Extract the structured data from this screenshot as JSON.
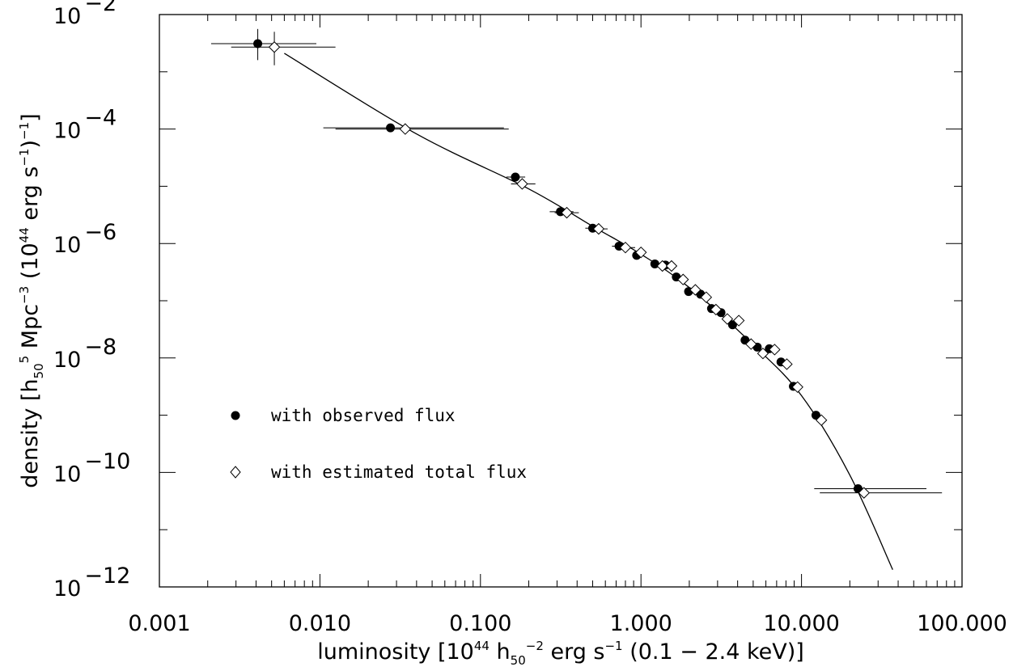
{
  "chart_data": {
    "type": "scatter",
    "title": "",
    "xlabel": "luminosity [10^44 h_50^-2 erg s^-1 (0.1 - 2.4 keV)]",
    "ylabel": "density [h_50^5 Mpc^-3 (10^44 erg s^-1)^-1]",
    "xscale": "log",
    "yscale": "log",
    "xlim": [
      0.001,
      100.0
    ],
    "ylim": [
      1e-12,
      0.01
    ],
    "x_tick_labels": [
      "0.001",
      "0.010",
      "0.100",
      "1.000",
      "10.000",
      "100.000"
    ],
    "y_tick_exponents": [
      "-12",
      "-10",
      "-8",
      "-6",
      "-4",
      "-2"
    ],
    "grid": false,
    "legend_position": "lower-left",
    "series": [
      {
        "name": "with observed flux",
        "marker": "filled-circle",
        "points": [
          {
            "x": 0.0041,
            "y": 0.0031,
            "xerr": [
              0.0021,
              0.0095
            ],
            "yerr": [
              0.0016,
              0.0056
            ]
          },
          {
            "x": 0.0275,
            "y": 0.000105,
            "xerr": [
              0.0105,
              0.14
            ]
          },
          {
            "x": 0.165,
            "y": 1.45e-05,
            "xerr": [
              0.145,
              0.19
            ]
          },
          {
            "x": 0.315,
            "y": 3.6e-06,
            "xerr": [
              0.27,
              0.38
            ]
          },
          {
            "x": 0.5,
            "y": 1.85e-06,
            "xerr": [
              0.45,
              0.56
            ]
          },
          {
            "x": 0.73,
            "y": 9e-07,
            "xerr": [
              0.66,
              0.82
            ]
          },
          {
            "x": 0.94,
            "y": 6.2e-07
          },
          {
            "x": 1.22,
            "y": 4.4e-07
          },
          {
            "x": 1.42,
            "y": 4.2e-07
          },
          {
            "x": 1.66,
            "y": 2.6e-07
          },
          {
            "x": 1.98,
            "y": 1.45e-07
          },
          {
            "x": 2.35,
            "y": 1.3e-07
          },
          {
            "x": 2.75,
            "y": 7.3e-08
          },
          {
            "x": 3.15,
            "y": 6.2e-08
          },
          {
            "x": 3.72,
            "y": 3.8e-08
          },
          {
            "x": 4.45,
            "y": 2.05e-08
          },
          {
            "x": 5.3,
            "y": 1.55e-08
          },
          {
            "x": 6.3,
            "y": 1.45e-08
          },
          {
            "x": 7.45,
            "y": 8.5e-09
          },
          {
            "x": 8.9,
            "y": 3.2e-09
          },
          {
            "x": 12.3,
            "y": 1e-09
          },
          {
            "x": 22.5,
            "y": 5.2e-11,
            "xerr": [
              12.0,
              60.0
            ]
          }
        ]
      },
      {
        "name": "with estimated total flux",
        "marker": "open-diamond",
        "points": [
          {
            "x": 0.0052,
            "y": 0.0027,
            "xerr": [
              0.0028,
              0.0125
            ],
            "yerr": [
              0.0013,
              0.005
            ]
          },
          {
            "x": 0.034,
            "y": 0.0001,
            "xerr": [
              0.0125,
              0.15
            ]
          },
          {
            "x": 0.182,
            "y": 1.1e-05,
            "xerr": [
              0.155,
              0.22
            ]
          },
          {
            "x": 0.345,
            "y": 3.45e-06,
            "xerr": [
              0.29,
              0.41
            ]
          },
          {
            "x": 0.545,
            "y": 1.8e-06,
            "xerr": [
              0.48,
              0.62
            ]
          },
          {
            "x": 0.8,
            "y": 8.5e-07,
            "xerr": [
              0.7,
              0.92
            ]
          },
          {
            "x": 1.0,
            "y": 7e-07
          },
          {
            "x": 1.36,
            "y": 4.05e-07
          },
          {
            "x": 1.55,
            "y": 4.05e-07
          },
          {
            "x": 1.83,
            "y": 2.35e-07
          },
          {
            "x": 2.18,
            "y": 1.55e-07
          },
          {
            "x": 2.55,
            "y": 1.15e-07
          },
          {
            "x": 2.93,
            "y": 7e-08
          },
          {
            "x": 3.45,
            "y": 4.8e-08
          },
          {
            "x": 4.07,
            "y": 4.5e-08
          },
          {
            "x": 4.85,
            "y": 1.75e-08
          },
          {
            "x": 5.75,
            "y": 1.2e-08
          },
          {
            "x": 6.8,
            "y": 1.4e-08
          },
          {
            "x": 8.1,
            "y": 7.8e-09
          },
          {
            "x": 9.45,
            "y": 3.1e-09
          },
          {
            "x": 13.3,
            "y": 8.2e-10
          },
          {
            "x": 24.5,
            "y": 4.4e-11,
            "xerr": [
              13.0,
              75.0
            ]
          }
        ]
      },
      {
        "type": "line",
        "name": "",
        "points": [
          {
            "x": 0.006,
            "y": 0.0021
          },
          {
            "x": 0.04,
            "y": 8.2e-05
          },
          {
            "x": 0.2,
            "y": 9e-06
          },
          {
            "x": 0.5,
            "y": 2e-06
          },
          {
            "x": 1.0,
            "y": 6.5e-07
          },
          {
            "x": 2.0,
            "y": 1.7e-07
          },
          {
            "x": 5.0,
            "y": 1.7e-08
          },
          {
            "x": 10.0,
            "y": 2.2e-09
          },
          {
            "x": 20.0,
            "y": 9e-11
          },
          {
            "x": 37.0,
            "y": 2e-12
          }
        ]
      }
    ]
  }
}
